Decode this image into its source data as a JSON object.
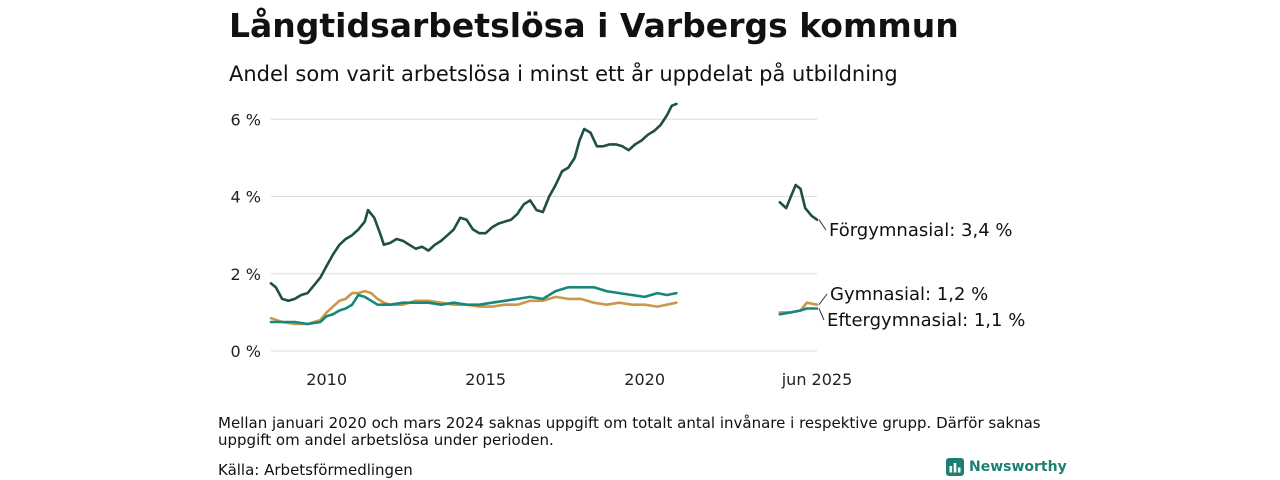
{
  "header": {
    "title": "Långtidsarbetslösa i Varbergs kommun",
    "subtitle": "Andel som varit arbetslösa i minst ett år uppdelat på utbildning"
  },
  "footer": {
    "note": "Mellan januari 2020 och mars 2024 saknas uppgift om totalt antal invånare i respektive grupp. Därför saknas uppgift om andel arbetslösa under perioden.",
    "source": "Källa: Arbetsförmedlingen",
    "brand": "Newsworthy",
    "brand_icon": "bar-chart-icon"
  },
  "chart_data": {
    "type": "line",
    "x_unit": "year",
    "xlim": [
      2008.25,
      2025.42
    ],
    "ylim": [
      0,
      6.5
    ],
    "y_ticks": [
      0,
      2,
      4,
      6
    ],
    "y_tick_labels": [
      "0 %",
      "2 %",
      "4 %",
      "6 %"
    ],
    "x_ticks": [
      2010,
      2015,
      2020,
      2025.42
    ],
    "x_tick_labels": [
      "2010",
      "2015",
      "2020",
      "jun 2025"
    ],
    "grid": "horizontal",
    "legend": "end-of-line labels",
    "series": [
      {
        "key": "forgymnasial",
        "name": "Förgymnasial",
        "end_label": "Förgymnasial: 3,4 %",
        "color": "#1f4f48",
        "segments": [
          [
            [
              2008.25,
              1.75
            ],
            [
              2008.4,
              1.65
            ],
            [
              2008.6,
              1.35
            ],
            [
              2008.8,
              1.3
            ],
            [
              2009.0,
              1.35
            ],
            [
              2009.2,
              1.45
            ],
            [
              2009.4,
              1.5
            ],
            [
              2009.6,
              1.7
            ],
            [
              2009.8,
              1.9
            ],
            [
              2010.0,
              2.2
            ],
            [
              2010.2,
              2.5
            ],
            [
              2010.4,
              2.75
            ],
            [
              2010.6,
              2.9
            ],
            [
              2010.8,
              3.0
            ],
            [
              2011.0,
              3.15
            ],
            [
              2011.2,
              3.35
            ],
            [
              2011.3,
              3.65
            ],
            [
              2011.5,
              3.45
            ],
            [
              2011.7,
              3.0
            ],
            [
              2011.8,
              2.75
            ],
            [
              2012.0,
              2.8
            ],
            [
              2012.2,
              2.9
            ],
            [
              2012.4,
              2.85
            ],
            [
              2012.6,
              2.75
            ],
            [
              2012.8,
              2.65
            ],
            [
              2013.0,
              2.7
            ],
            [
              2013.2,
              2.6
            ],
            [
              2013.4,
              2.75
            ],
            [
              2013.6,
              2.85
            ],
            [
              2013.8,
              3.0
            ],
            [
              2014.0,
              3.15
            ],
            [
              2014.2,
              3.45
            ],
            [
              2014.4,
              3.4
            ],
            [
              2014.6,
              3.15
            ],
            [
              2014.8,
              3.05
            ],
            [
              2015.0,
              3.05
            ],
            [
              2015.2,
              3.2
            ],
            [
              2015.4,
              3.3
            ],
            [
              2015.6,
              3.35
            ],
            [
              2015.8,
              3.4
            ],
            [
              2016.0,
              3.55
            ],
            [
              2016.2,
              3.8
            ],
            [
              2016.4,
              3.9
            ],
            [
              2016.6,
              3.65
            ],
            [
              2016.8,
              3.6
            ],
            [
              2017.0,
              4.0
            ],
            [
              2017.2,
              4.3
            ],
            [
              2017.4,
              4.65
            ],
            [
              2017.6,
              4.75
            ],
            [
              2017.8,
              5.0
            ],
            [
              2017.95,
              5.45
            ],
            [
              2018.1,
              5.75
            ],
            [
              2018.3,
              5.65
            ],
            [
              2018.5,
              5.3
            ],
            [
              2018.7,
              5.3
            ],
            [
              2018.9,
              5.35
            ],
            [
              2019.1,
              5.35
            ],
            [
              2019.3,
              5.3
            ],
            [
              2019.5,
              5.2
            ],
            [
              2019.7,
              5.35
            ],
            [
              2019.9,
              5.45
            ],
            [
              2020.1,
              5.6
            ],
            [
              2020.3,
              5.7
            ],
            [
              2020.5,
              5.85
            ],
            [
              2020.7,
              6.1
            ],
            [
              2020.85,
              6.35
            ],
            [
              2021.0,
              6.4
            ]
          ],
          [
            [
              2024.25,
              3.85
            ],
            [
              2024.45,
              3.7
            ],
            [
              2024.6,
              4.0
            ],
            [
              2024.75,
              4.3
            ],
            [
              2024.9,
              4.2
            ],
            [
              2025.05,
              3.7
            ],
            [
              2025.25,
              3.5
            ],
            [
              2025.42,
              3.4
            ]
          ]
        ]
      },
      {
        "key": "gymnasial",
        "name": "Gymnasial",
        "end_label": "Gymnasial: 1,2 %",
        "color": "#c8994a",
        "segments": [
          [
            [
              2008.25,
              0.85
            ],
            [
              2008.6,
              0.75
            ],
            [
              2009.0,
              0.7
            ],
            [
              2009.4,
              0.7
            ],
            [
              2009.8,
              0.8
            ],
            [
              2010.0,
              1.0
            ],
            [
              2010.2,
              1.15
            ],
            [
              2010.4,
              1.3
            ],
            [
              2010.6,
              1.35
            ],
            [
              2010.8,
              1.5
            ],
            [
              2011.0,
              1.5
            ],
            [
              2011.2,
              1.55
            ],
            [
              2011.4,
              1.5
            ],
            [
              2011.6,
              1.35
            ],
            [
              2011.8,
              1.25
            ],
            [
              2012.0,
              1.2
            ],
            [
              2012.4,
              1.2
            ],
            [
              2012.8,
              1.3
            ],
            [
              2013.2,
              1.3
            ],
            [
              2013.6,
              1.25
            ],
            [
              2014.0,
              1.2
            ],
            [
              2014.4,
              1.2
            ],
            [
              2014.8,
              1.15
            ],
            [
              2015.2,
              1.15
            ],
            [
              2015.6,
              1.2
            ],
            [
              2016.0,
              1.2
            ],
            [
              2016.4,
              1.3
            ],
            [
              2016.8,
              1.3
            ],
            [
              2017.2,
              1.4
            ],
            [
              2017.6,
              1.35
            ],
            [
              2018.0,
              1.35
            ],
            [
              2018.4,
              1.25
            ],
            [
              2018.8,
              1.2
            ],
            [
              2019.2,
              1.25
            ],
            [
              2019.6,
              1.2
            ],
            [
              2020.0,
              1.2
            ],
            [
              2020.4,
              1.15
            ],
            [
              2020.7,
              1.2
            ],
            [
              2021.0,
              1.25
            ]
          ],
          [
            [
              2024.25,
              1.0
            ],
            [
              2024.6,
              1.0
            ],
            [
              2024.9,
              1.05
            ],
            [
              2025.1,
              1.25
            ],
            [
              2025.42,
              1.2
            ]
          ]
        ]
      },
      {
        "key": "eftergymnasial",
        "name": "Eftergymnasial",
        "end_label": "Eftergymnasial: 1,1 %",
        "color": "#17877b",
        "segments": [
          [
            [
              2008.25,
              0.75
            ],
            [
              2008.6,
              0.75
            ],
            [
              2009.0,
              0.75
            ],
            [
              2009.4,
              0.7
            ],
            [
              2009.8,
              0.75
            ],
            [
              2010.0,
              0.9
            ],
            [
              2010.2,
              0.95
            ],
            [
              2010.4,
              1.05
            ],
            [
              2010.6,
              1.1
            ],
            [
              2010.8,
              1.2
            ],
            [
              2011.0,
              1.45
            ],
            [
              2011.2,
              1.4
            ],
            [
              2011.4,
              1.3
            ],
            [
              2011.6,
              1.2
            ],
            [
              2011.8,
              1.2
            ],
            [
              2012.0,
              1.2
            ],
            [
              2012.4,
              1.25
            ],
            [
              2012.8,
              1.25
            ],
            [
              2013.2,
              1.25
            ],
            [
              2013.6,
              1.2
            ],
            [
              2014.0,
              1.25
            ],
            [
              2014.4,
              1.2
            ],
            [
              2014.8,
              1.2
            ],
            [
              2015.2,
              1.25
            ],
            [
              2015.6,
              1.3
            ],
            [
              2016.0,
              1.35
            ],
            [
              2016.4,
              1.4
            ],
            [
              2016.8,
              1.35
            ],
            [
              2017.2,
              1.55
            ],
            [
              2017.6,
              1.65
            ],
            [
              2018.0,
              1.65
            ],
            [
              2018.4,
              1.65
            ],
            [
              2018.8,
              1.55
            ],
            [
              2019.2,
              1.5
            ],
            [
              2019.6,
              1.45
            ],
            [
              2020.0,
              1.4
            ],
            [
              2020.4,
              1.5
            ],
            [
              2020.7,
              1.45
            ],
            [
              2021.0,
              1.5
            ]
          ],
          [
            [
              2024.25,
              0.95
            ],
            [
              2024.6,
              1.0
            ],
            [
              2024.9,
              1.05
            ],
            [
              2025.1,
              1.1
            ],
            [
              2025.42,
              1.1
            ]
          ]
        ]
      }
    ]
  }
}
